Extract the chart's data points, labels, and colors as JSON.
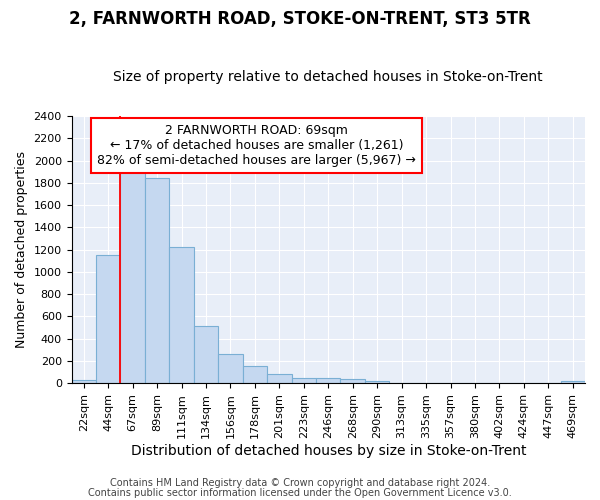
{
  "title": "2, FARNWORTH ROAD, STOKE-ON-TRENT, ST3 5TR",
  "subtitle": "Size of property relative to detached houses in Stoke-on-Trent",
  "xlabel": "Distribution of detached houses by size in Stoke-on-Trent",
  "ylabel": "Number of detached properties",
  "bar_color": "#c5d8f0",
  "bar_edge_color": "#7aafd4",
  "categories": [
    "22sqm",
    "44sqm",
    "67sqm",
    "89sqm",
    "111sqm",
    "134sqm",
    "156sqm",
    "178sqm",
    "201sqm",
    "223sqm",
    "246sqm",
    "268sqm",
    "290sqm",
    "313sqm",
    "335sqm",
    "357sqm",
    "380sqm",
    "402sqm",
    "424sqm",
    "447sqm",
    "469sqm"
  ],
  "values": [
    30,
    1150,
    1960,
    1840,
    1220,
    515,
    265,
    150,
    80,
    50,
    45,
    35,
    20,
    0,
    0,
    0,
    0,
    0,
    0,
    0,
    15
  ],
  "ylim": [
    0,
    2400
  ],
  "yticks": [
    0,
    200,
    400,
    600,
    800,
    1000,
    1200,
    1400,
    1600,
    1800,
    2000,
    2200,
    2400
  ],
  "vline_bin_index": 2,
  "annotation_title": "2 FARNWORTH ROAD: 69sqm",
  "annotation_line1": "← 17% of detached houses are smaller (1,261)",
  "annotation_line2": "82% of semi-detached houses are larger (5,967) →",
  "footnote1": "Contains HM Land Registry data © Crown copyright and database right 2024.",
  "footnote2": "Contains public sector information licensed under the Open Government Licence v3.0.",
  "background_color": "#e8eef8",
  "grid_color": "#ffffff",
  "title_fontsize": 12,
  "subtitle_fontsize": 10,
  "xlabel_fontsize": 10,
  "ylabel_fontsize": 9,
  "tick_fontsize": 8,
  "annotation_fontsize": 9,
  "footnote_fontsize": 7
}
